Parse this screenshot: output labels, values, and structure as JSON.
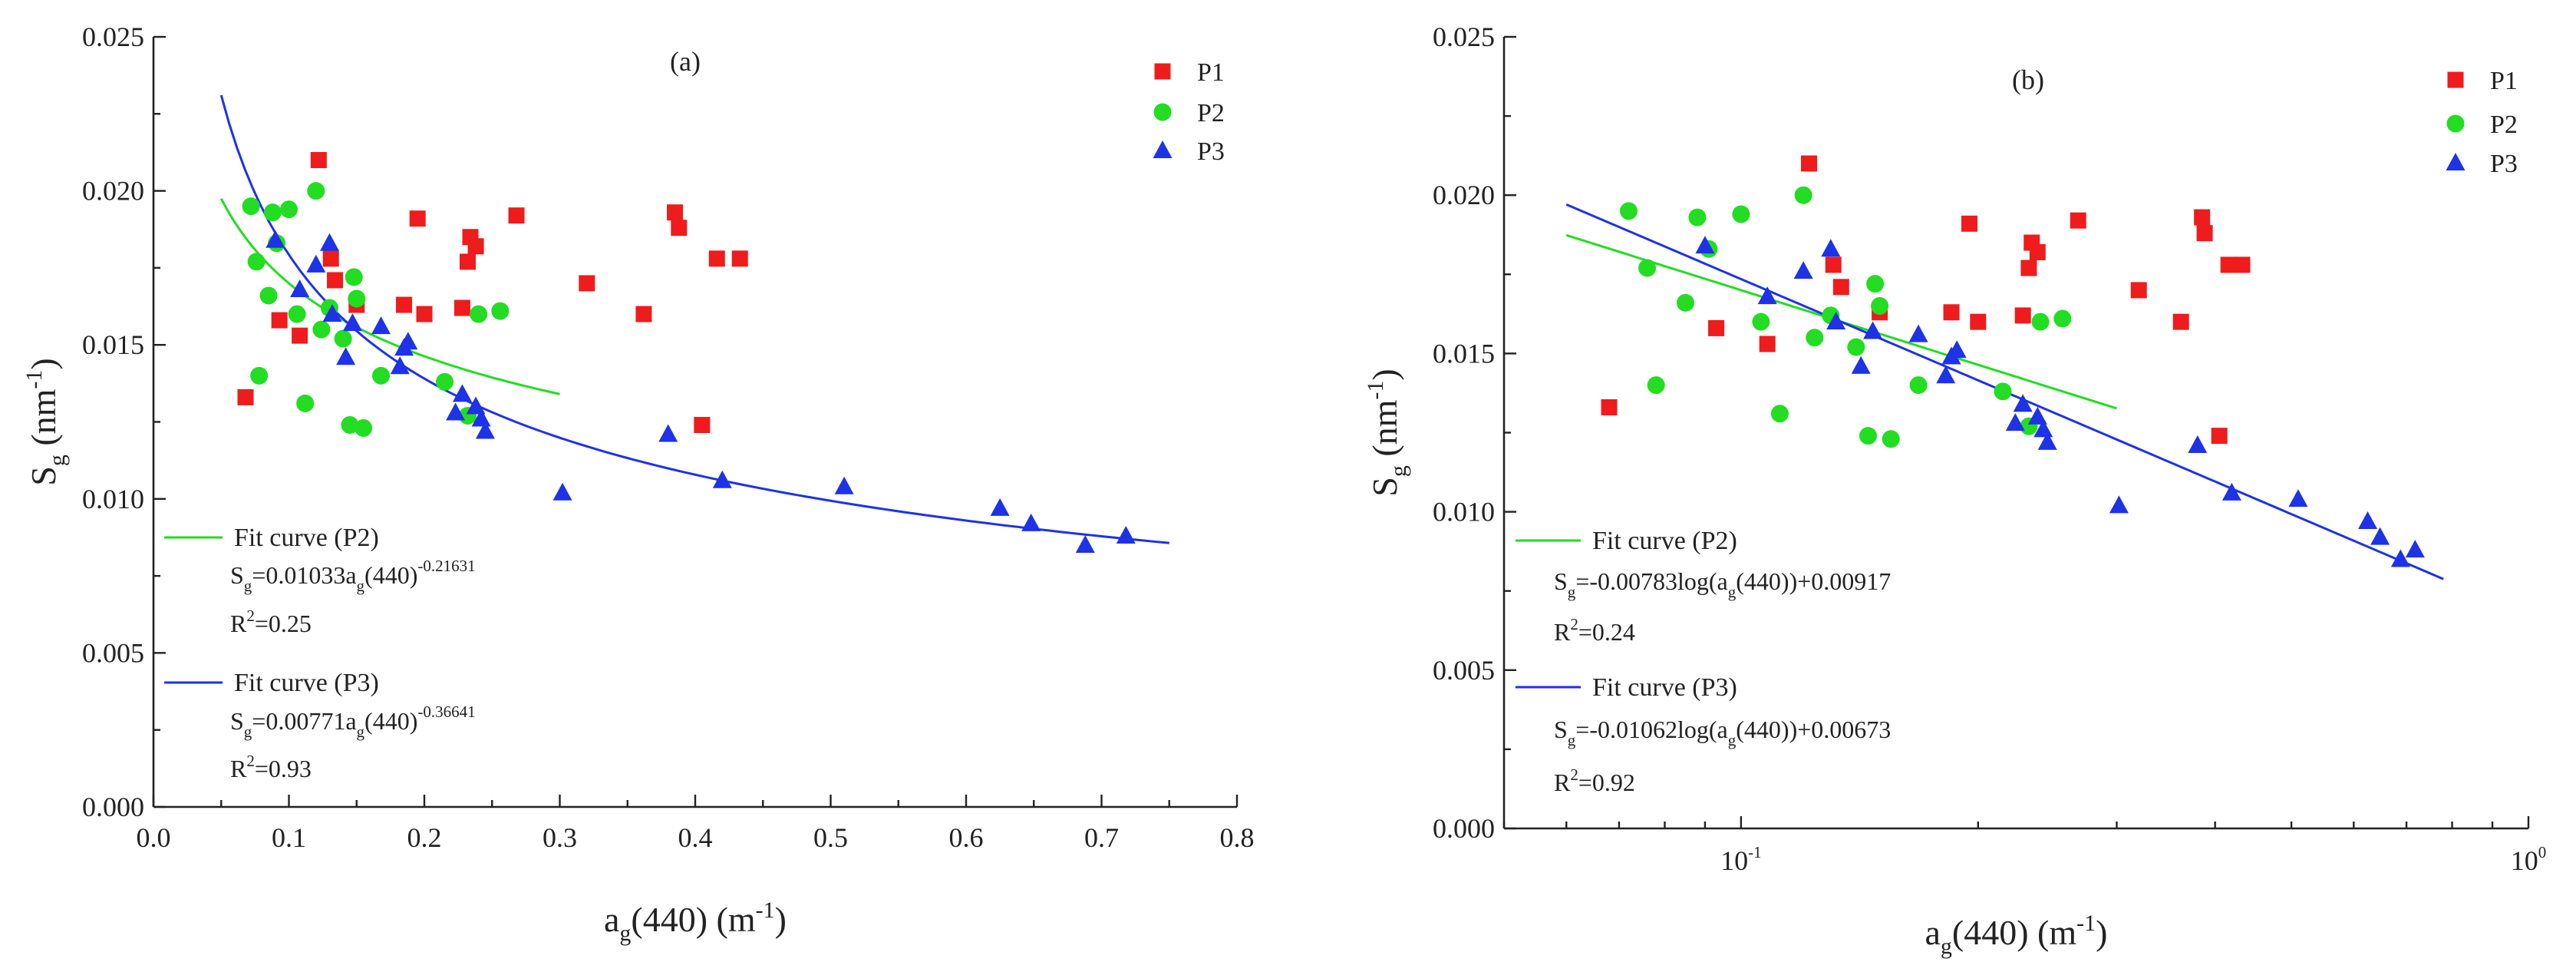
{
  "chart_data": [
    {
      "type": "scatter",
      "panel_label": "(a)",
      "xscale": "linear",
      "xlim": [
        0.0,
        0.8
      ],
      "ylim": [
        0.0,
        0.025
      ],
      "xticks": [
        "0.0",
        "0.1",
        "0.2",
        "0.3",
        "0.4",
        "0.5",
        "0.6",
        "0.7",
        "0.8"
      ],
      "yticks": [
        "0.000",
        "0.005",
        "0.010",
        "0.015",
        "0.020",
        "0.025"
      ],
      "xlabel": {
        "main": "a",
        "sub": "g",
        "rest": "(440) (m",
        "sup": "-1",
        "end": ")"
      },
      "ylabel": {
        "main": "S",
        "sub": "g",
        "rest": " (nm",
        "sup": "-1",
        "end": ")"
      },
      "legend_position": "top-right",
      "series": [
        {
          "name": "P1",
          "marker": "square",
          "color": "#ee1c1c",
          "points": [
            [
              0.068,
              0.0133
            ],
            [
              0.093,
              0.0158
            ],
            [
              0.108,
              0.0153
            ],
            [
              0.122,
              0.021
            ],
            [
              0.131,
              0.0178
            ],
            [
              0.134,
              0.0171
            ],
            [
              0.15,
              0.0163
            ],
            [
              0.185,
              0.0163
            ],
            [
              0.195,
              0.0191
            ],
            [
              0.2,
              0.016
            ],
            [
              0.228,
              0.0162
            ],
            [
              0.232,
              0.0177
            ],
            [
              0.234,
              0.0185
            ],
            [
              0.238,
              0.0182
            ],
            [
              0.268,
              0.0192
            ],
            [
              0.32,
              0.017
            ],
            [
              0.362,
              0.016
            ],
            [
              0.385,
              0.0193
            ],
            [
              0.388,
              0.0188
            ],
            [
              0.405,
              0.0124
            ],
            [
              0.416,
              0.0178
            ],
            [
              0.433,
              0.0178
            ]
          ]
        },
        {
          "name": "P2",
          "marker": "circle",
          "color": "#22dd22",
          "points": [
            [
              0.072,
              0.0195
            ],
            [
              0.076,
              0.0177
            ],
            [
              0.078,
              0.014
            ],
            [
              0.085,
              0.0166
            ],
            [
              0.088,
              0.0193
            ],
            [
              0.091,
              0.0183
            ],
            [
              0.1,
              0.0194
            ],
            [
              0.106,
              0.016
            ],
            [
              0.112,
              0.0131
            ],
            [
              0.12,
              0.02
            ],
            [
              0.124,
              0.0155
            ],
            [
              0.13,
              0.0162
            ],
            [
              0.14,
              0.0152
            ],
            [
              0.145,
              0.0124
            ],
            [
              0.148,
              0.0172
            ],
            [
              0.15,
              0.0165
            ],
            [
              0.155,
              0.0123
            ],
            [
              0.168,
              0.014
            ],
            [
              0.215,
              0.0138
            ],
            [
              0.232,
              0.0127
            ],
            [
              0.24,
              0.016
            ],
            [
              0.256,
              0.0161
            ]
          ]
        },
        {
          "name": "P3",
          "marker": "triangle",
          "color": "#1e32e6",
          "points": [
            [
              0.09,
              0.0184
            ],
            [
              0.108,
              0.0168
            ],
            [
              0.12,
              0.0176
            ],
            [
              0.13,
              0.0183
            ],
            [
              0.132,
              0.016
            ],
            [
              0.142,
              0.0146
            ],
            [
              0.147,
              0.0157
            ],
            [
              0.168,
              0.0156
            ],
            [
              0.182,
              0.0143
            ],
            [
              0.185,
              0.0149
            ],
            [
              0.188,
              0.0151
            ],
            [
              0.223,
              0.0128
            ],
            [
              0.228,
              0.0134
            ],
            [
              0.238,
              0.013
            ],
            [
              0.242,
              0.0126
            ],
            [
              0.245,
              0.0122
            ],
            [
              0.302,
              0.0102
            ],
            [
              0.38,
              0.0121
            ],
            [
              0.42,
              0.0106
            ],
            [
              0.51,
              0.0104
            ],
            [
              0.625,
              0.0097
            ],
            [
              0.648,
              0.0092
            ],
            [
              0.688,
              0.0085
            ],
            [
              0.718,
              0.0088
            ]
          ]
        }
      ],
      "fits": [
        {
          "name": "Fit curve (P2)",
          "color": "#22dd22",
          "form": "power",
          "a": 0.01033,
          "b": -0.21631,
          "xrange": [
            0.05,
            0.3
          ],
          "eq_main": "S",
          "eq_sub": "g",
          "eq_body": "=0.01033a",
          "eq_sub2": "g",
          "eq_tail": "(440)",
          "eq_sup": "-0.21631",
          "r2_main": "R",
          "r2_sup": "2",
          "r2_val": "=0.25"
        },
        {
          "name": "Fit curve (P3)",
          "color": "#1e32e6",
          "form": "power",
          "a": 0.00771,
          "b": -0.36641,
          "xrange": [
            0.05,
            0.75
          ],
          "eq_main": "S",
          "eq_sub": "g",
          "eq_body": "=0.00771a",
          "eq_sub2": "g",
          "eq_tail": "(440)",
          "eq_sup": "-0.36641",
          "r2_main": "R",
          "r2_sup": "2",
          "r2_val": "=0.93"
        }
      ]
    },
    {
      "type": "scatter",
      "panel_label": "(b)",
      "xscale": "log",
      "xlim": [
        0.05,
        1.0
      ],
      "ylim": [
        0.0,
        0.025
      ],
      "xticks": [
        {
          "value": 0.1,
          "base": "10",
          "exp": "-1"
        },
        {
          "value": 1.0,
          "base": "10",
          "exp": "0"
        }
      ],
      "yticks": [
        "0.000",
        "0.005",
        "0.010",
        "0.015",
        "0.020",
        "0.025"
      ],
      "xlabel": {
        "main": "a",
        "sub": "g",
        "rest": "(440) (m",
        "sup": "-1",
        "end": ")"
      },
      "ylabel": {
        "main": "S",
        "sub": "g",
        "rest": " (nm",
        "sup": "-1",
        "end": ")"
      },
      "legend_position": "top-right",
      "series": [
        {
          "name": "P1",
          "marker": "square",
          "color": "#ee1c1c",
          "points": [
            [
              0.068,
              0.0133
            ],
            [
              0.093,
              0.0158
            ],
            [
              0.108,
              0.0153
            ],
            [
              0.122,
              0.021
            ],
            [
              0.131,
              0.0178
            ],
            [
              0.134,
              0.0171
            ],
            [
              0.15,
              0.0163
            ],
            [
              0.185,
              0.0163
            ],
            [
              0.195,
              0.0191
            ],
            [
              0.2,
              0.016
            ],
            [
              0.228,
              0.0162
            ],
            [
              0.232,
              0.0177
            ],
            [
              0.234,
              0.0185
            ],
            [
              0.238,
              0.0182
            ],
            [
              0.268,
              0.0192
            ],
            [
              0.32,
              0.017
            ],
            [
              0.362,
              0.016
            ],
            [
              0.385,
              0.0193
            ],
            [
              0.388,
              0.0188
            ],
            [
              0.405,
              0.0124
            ],
            [
              0.416,
              0.0178
            ],
            [
              0.433,
              0.0178
            ]
          ]
        },
        {
          "name": "P2",
          "marker": "circle",
          "color": "#22dd22",
          "points": [
            [
              0.072,
              0.0195
            ],
            [
              0.076,
              0.0177
            ],
            [
              0.078,
              0.014
            ],
            [
              0.085,
              0.0166
            ],
            [
              0.088,
              0.0193
            ],
            [
              0.091,
              0.0183
            ],
            [
              0.1,
              0.0194
            ],
            [
              0.106,
              0.016
            ],
            [
              0.112,
              0.0131
            ],
            [
              0.12,
              0.02
            ],
            [
              0.124,
              0.0155
            ],
            [
              0.13,
              0.0162
            ],
            [
              0.14,
              0.0152
            ],
            [
              0.145,
              0.0124
            ],
            [
              0.148,
              0.0172
            ],
            [
              0.15,
              0.0165
            ],
            [
              0.155,
              0.0123
            ],
            [
              0.168,
              0.014
            ],
            [
              0.215,
              0.0138
            ],
            [
              0.232,
              0.0127
            ],
            [
              0.24,
              0.016
            ],
            [
              0.256,
              0.0161
            ]
          ]
        },
        {
          "name": "P3",
          "marker": "triangle",
          "color": "#1e32e6",
          "points": [
            [
              0.09,
              0.0184
            ],
            [
              0.108,
              0.0168
            ],
            [
              0.12,
              0.0176
            ],
            [
              0.13,
              0.0183
            ],
            [
              0.132,
              0.016
            ],
            [
              0.142,
              0.0146
            ],
            [
              0.147,
              0.0157
            ],
            [
              0.168,
              0.0156
            ],
            [
              0.182,
              0.0143
            ],
            [
              0.185,
              0.0149
            ],
            [
              0.188,
              0.0151
            ],
            [
              0.223,
              0.0128
            ],
            [
              0.228,
              0.0134
            ],
            [
              0.238,
              0.013
            ],
            [
              0.242,
              0.0126
            ],
            [
              0.245,
              0.0122
            ],
            [
              0.302,
              0.0102
            ],
            [
              0.38,
              0.0121
            ],
            [
              0.42,
              0.0106
            ],
            [
              0.51,
              0.0104
            ],
            [
              0.625,
              0.0097
            ],
            [
              0.648,
              0.0092
            ],
            [
              0.688,
              0.0085
            ],
            [
              0.718,
              0.0088
            ]
          ]
        }
      ],
      "fits": [
        {
          "name": "Fit curve (P2)",
          "color": "#22dd22",
          "form": "log",
          "slope": -0.00783,
          "intercept": 0.00917,
          "xrange": [
            0.06,
            0.3
          ],
          "eq_main": "S",
          "eq_sub": "g",
          "eq_body": "=-0.00783log(a",
          "eq_sub2": "g",
          "eq_tail": "(440))+0.00917",
          "r2_main": "R",
          "r2_sup": "2",
          "r2_val": "=0.24"
        },
        {
          "name": "Fit curve (P3)",
          "color": "#1e32e6",
          "form": "log",
          "slope": -0.01062,
          "intercept": 0.00673,
          "xrange": [
            0.06,
            0.78
          ],
          "eq_main": "S",
          "eq_sub": "g",
          "eq_body": "=-0.01062log(a",
          "eq_sub2": "g",
          "eq_tail": "(440))+0.00673",
          "r2_main": "R",
          "r2_sup": "2",
          "r2_val": "=0.92"
        }
      ]
    }
  ]
}
